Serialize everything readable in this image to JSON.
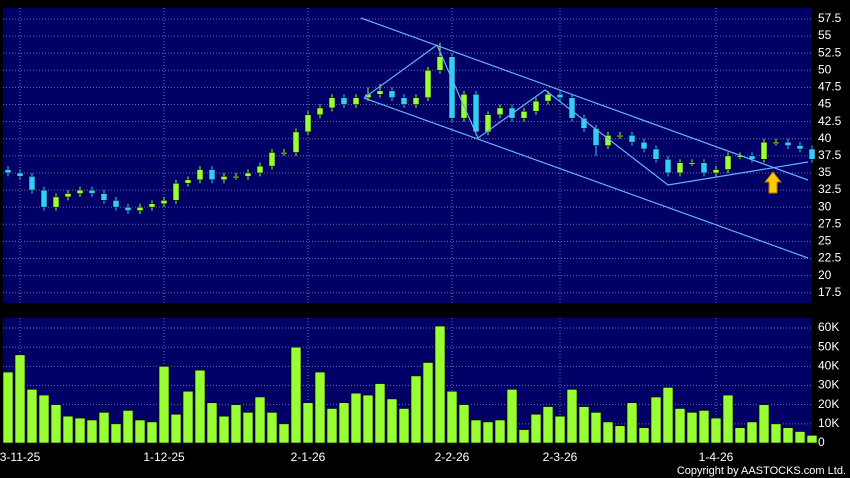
{
  "chart_data": [
    {
      "type": "candlestick",
      "categories": [
        null,
        "3-11-25",
        null,
        null,
        null,
        null,
        null,
        null,
        null,
        null,
        null,
        null,
        null,
        "1-12-25",
        null,
        null,
        null,
        null,
        null,
        null,
        null,
        null,
        null,
        null,
        null,
        "2-1-26",
        null,
        null,
        null,
        null,
        null,
        null,
        null,
        null,
        null,
        null,
        null,
        "2-2-26",
        null,
        null,
        null,
        null,
        null,
        null,
        null,
        null,
        "2-3-26",
        null,
        null,
        null,
        null,
        null,
        null,
        null,
        null,
        null,
        null,
        null,
        null,
        "1-4-26",
        null,
        null,
        null,
        null,
        null,
        null,
        null,
        null
      ],
      "open": [
        35.5,
        35,
        34.5,
        32.5,
        30,
        31.5,
        32,
        32.5,
        32,
        31,
        30,
        29.5,
        30,
        30.5,
        31,
        33.5,
        34,
        35.5,
        34,
        34.5,
        34.5,
        35,
        36,
        38,
        38,
        41,
        43.5,
        44.5,
        46,
        45,
        46,
        46.5,
        47,
        46,
        45,
        46,
        50,
        52,
        43,
        46.5,
        41,
        43.5,
        44.5,
        43,
        44,
        45.5,
        46.5,
        46,
        43,
        41.5,
        39,
        40.5,
        40.5,
        39.5,
        38.5,
        37,
        35,
        36.5,
        36.5,
        35,
        35.5,
        37.5,
        37.5,
        37,
        39.5,
        39.5,
        39,
        38.5
      ],
      "high": [
        36,
        35.5,
        35,
        33,
        32,
        32.5,
        33,
        33,
        32.5,
        31.5,
        30.5,
        30.5,
        31,
        31.5,
        34,
        34.5,
        36,
        36,
        35,
        35,
        35.5,
        36.5,
        38.5,
        38.5,
        41.5,
        44,
        45,
        46.5,
        46.5,
        46.5,
        47.5,
        48,
        47.5,
        46.5,
        46.5,
        50.5,
        54,
        52.5,
        47,
        47,
        44,
        45,
        45,
        44.5,
        46,
        47,
        47,
        46.5,
        43.5,
        42,
        41,
        41,
        41,
        40,
        39,
        37.5,
        37,
        37,
        37,
        36,
        38,
        38,
        38,
        40,
        40,
        40,
        39.5,
        39
      ],
      "low": [
        34.5,
        34,
        32,
        29.5,
        29.5,
        31,
        31.5,
        31.5,
        30.5,
        29.5,
        29,
        29,
        29.5,
        30,
        30.5,
        33,
        33.5,
        33.5,
        33.5,
        34,
        34,
        34.5,
        35.5,
        37.5,
        37.5,
        40.5,
        43,
        44,
        44.5,
        44.5,
        45.5,
        46,
        45.5,
        44.5,
        44.5,
        45.5,
        49.5,
        42.5,
        42.5,
        40.5,
        40.5,
        43,
        42.5,
        42.5,
        43.5,
        45,
        45.5,
        42.5,
        41,
        37.5,
        38.5,
        40,
        39,
        38,
        36.5,
        34.5,
        34.5,
        36,
        34.5,
        34.5,
        35,
        37,
        36.5,
        36.5,
        39,
        38.5,
        38,
        36.5
      ],
      "close": [
        35,
        34.5,
        32.5,
        30,
        31.5,
        32,
        32.5,
        32,
        31,
        30,
        29.5,
        30,
        30.5,
        31,
        33.5,
        34,
        35.5,
        34,
        34.5,
        34.5,
        35,
        36,
        38,
        38,
        41,
        43.5,
        44.5,
        46,
        45,
        46,
        46.5,
        47,
        46,
        45,
        46,
        50,
        52,
        43,
        46.5,
        41,
        43.5,
        44.5,
        43,
        44,
        45.5,
        46.5,
        46,
        43,
        41.5,
        39,
        40.5,
        40.5,
        39.5,
        38.5,
        37,
        35,
        36.5,
        36.5,
        35,
        35.5,
        37.5,
        37.5,
        37,
        39.5,
        39.5,
        39,
        38.5,
        37
      ],
      "up_color": "#99ff33",
      "down_color": "#33ccff",
      "ylim": [
        16,
        59.1
      ],
      "yticks": [
        17.5,
        20,
        22.5,
        25,
        27.5,
        30,
        32.5,
        35,
        37.5,
        40,
        42.5,
        45,
        47.5,
        50,
        52.5,
        55,
        57.5
      ],
      "grid": true
    },
    {
      "type": "bar",
      "values": [
        37000,
        46000,
        28000,
        25000,
        20000,
        14000,
        13000,
        12000,
        16000,
        10000,
        17000,
        12000,
        11000,
        40000,
        15000,
        27000,
        38000,
        21000,
        14000,
        20000,
        16000,
        24000,
        16000,
        10000,
        50000,
        21000,
        37000,
        18000,
        21000,
        26000,
        25000,
        31000,
        23000,
        18000,
        35000,
        42000,
        61000,
        27000,
        20000,
        12000,
        11000,
        12000,
        28000,
        7000,
        15000,
        19000,
        14000,
        28000,
        19000,
        16000,
        11000,
        9000,
        21000,
        8000,
        24000,
        29000,
        18000,
        16000,
        17000,
        13000,
        25000,
        8000,
        11000,
        20000,
        10000,
        8000,
        6000,
        4000
      ],
      "color": "#99ff33",
      "ylim": [
        0,
        65200
      ],
      "yticks": [
        0,
        {
          "value": 10000,
          "label": "10K"
        },
        {
          "value": 20000,
          "label": "20K"
        },
        {
          "value": 30000,
          "label": "30K"
        },
        {
          "value": 40000,
          "label": "40K"
        },
        {
          "value": 50000,
          "label": "50K"
        },
        {
          "value": 60000,
          "label": "60K"
        }
      ],
      "grid": true
    }
  ],
  "footer": "Copyright by AASTOCKS.com Ltd."
}
